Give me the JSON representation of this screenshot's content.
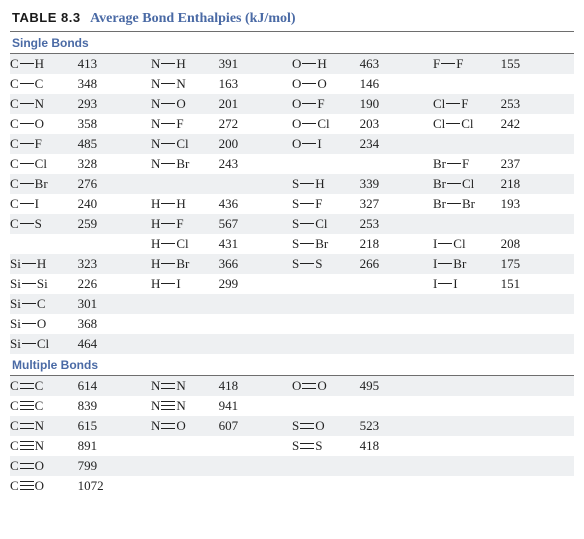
{
  "table": {
    "number": "TABLE 8.3",
    "title": "Average Bond Enthalpies (kJ/mol)",
    "title_color": "#4a6aa5",
    "stripe_color": "#eef0f2",
    "font_family": "Georgia, serif",
    "font_size_pt": 10,
    "sections": [
      {
        "header": "Single Bonds",
        "bond_order": 1,
        "rows": [
          [
            {
              "a": "C",
              "b": "H",
              "v": 413
            },
            {
              "a": "N",
              "b": "H",
              "v": 391
            },
            {
              "a": "O",
              "b": "H",
              "v": 463
            },
            {
              "a": "F",
              "b": "F",
              "v": 155
            }
          ],
          [
            {
              "a": "C",
              "b": "C",
              "v": 348
            },
            {
              "a": "N",
              "b": "N",
              "v": 163
            },
            {
              "a": "O",
              "b": "O",
              "v": 146
            },
            null
          ],
          [
            {
              "a": "C",
              "b": "N",
              "v": 293
            },
            {
              "a": "N",
              "b": "O",
              "v": 201
            },
            {
              "a": "O",
              "b": "F",
              "v": 190
            },
            {
              "a": "Cl",
              "b": "F",
              "v": 253
            }
          ],
          [
            {
              "a": "C",
              "b": "O",
              "v": 358
            },
            {
              "a": "N",
              "b": "F",
              "v": 272
            },
            {
              "a": "O",
              "b": "Cl",
              "v": 203
            },
            {
              "a": "Cl",
              "b": "Cl",
              "v": 242
            }
          ],
          [
            {
              "a": "C",
              "b": "F",
              "v": 485
            },
            {
              "a": "N",
              "b": "Cl",
              "v": 200
            },
            {
              "a": "O",
              "b": "I",
              "v": 234
            },
            null
          ],
          [
            {
              "a": "C",
              "b": "Cl",
              "v": 328
            },
            {
              "a": "N",
              "b": "Br",
              "v": 243
            },
            null,
            {
              "a": "Br",
              "b": "F",
              "v": 237
            }
          ],
          [
            {
              "a": "C",
              "b": "Br",
              "v": 276
            },
            null,
            {
              "a": "S",
              "b": "H",
              "v": 339
            },
            {
              "a": "Br",
              "b": "Cl",
              "v": 218
            }
          ],
          [
            {
              "a": "C",
              "b": "I",
              "v": 240
            },
            {
              "a": "H",
              "b": "H",
              "v": 436
            },
            {
              "a": "S",
              "b": "F",
              "v": 327
            },
            {
              "a": "Br",
              "b": "Br",
              "v": 193
            }
          ],
          [
            {
              "a": "C",
              "b": "S",
              "v": 259
            },
            {
              "a": "H",
              "b": "F",
              "v": 567
            },
            {
              "a": "S",
              "b": "Cl",
              "v": 253
            },
            null
          ],
          [
            null,
            {
              "a": "H",
              "b": "Cl",
              "v": 431
            },
            {
              "a": "S",
              "b": "Br",
              "v": 218
            },
            {
              "a": "I",
              "b": "Cl",
              "v": 208
            }
          ],
          [
            {
              "a": "Si",
              "b": "H",
              "v": 323
            },
            {
              "a": "H",
              "b": "Br",
              "v": 366
            },
            {
              "a": "S",
              "b": "S",
              "v": 266
            },
            {
              "a": "I",
              "b": "Br",
              "v": 175
            }
          ],
          [
            {
              "a": "Si",
              "b": "Si",
              "v": 226
            },
            {
              "a": "H",
              "b": "I",
              "v": 299
            },
            null,
            {
              "a": "I",
              "b": "I",
              "v": 151
            }
          ],
          [
            {
              "a": "Si",
              "b": "C",
              "v": 301
            },
            null,
            null,
            null
          ],
          [
            {
              "a": "Si",
              "b": "O",
              "v": 368
            },
            null,
            null,
            null
          ],
          [
            {
              "a": "Si",
              "b": "Cl",
              "v": 464
            },
            null,
            null,
            null
          ]
        ]
      },
      {
        "header": "Multiple Bonds",
        "rows": [
          [
            {
              "a": "C",
              "b": "C",
              "o": 2,
              "v": 614
            },
            {
              "a": "N",
              "b": "N",
              "o": 2,
              "v": 418
            },
            {
              "a": "O",
              "b": "O",
              "o": 2,
              "v": 495
            },
            null
          ],
          [
            {
              "a": "C",
              "b": "C",
              "o": 3,
              "v": 839
            },
            {
              "a": "N",
              "b": "N",
              "o": 3,
              "v": 941
            },
            null,
            null
          ],
          [
            {
              "a": "C",
              "b": "N",
              "o": 2,
              "v": 615
            },
            {
              "a": "N",
              "b": "O",
              "o": 2,
              "v": 607
            },
            {
              "a": "S",
              "b": "O",
              "o": 2,
              "v": 523
            },
            null
          ],
          [
            {
              "a": "C",
              "b": "N",
              "o": 3,
              "v": 891
            },
            null,
            {
              "a": "S",
              "b": "S",
              "o": 2,
              "v": 418
            },
            null
          ],
          [
            {
              "a": "C",
              "b": "O",
              "o": 2,
              "v": 799
            },
            null,
            null,
            null
          ],
          [
            {
              "a": "C",
              "b": "O",
              "o": 3,
              "v": 1072
            },
            null,
            null,
            null
          ]
        ]
      }
    ]
  }
}
